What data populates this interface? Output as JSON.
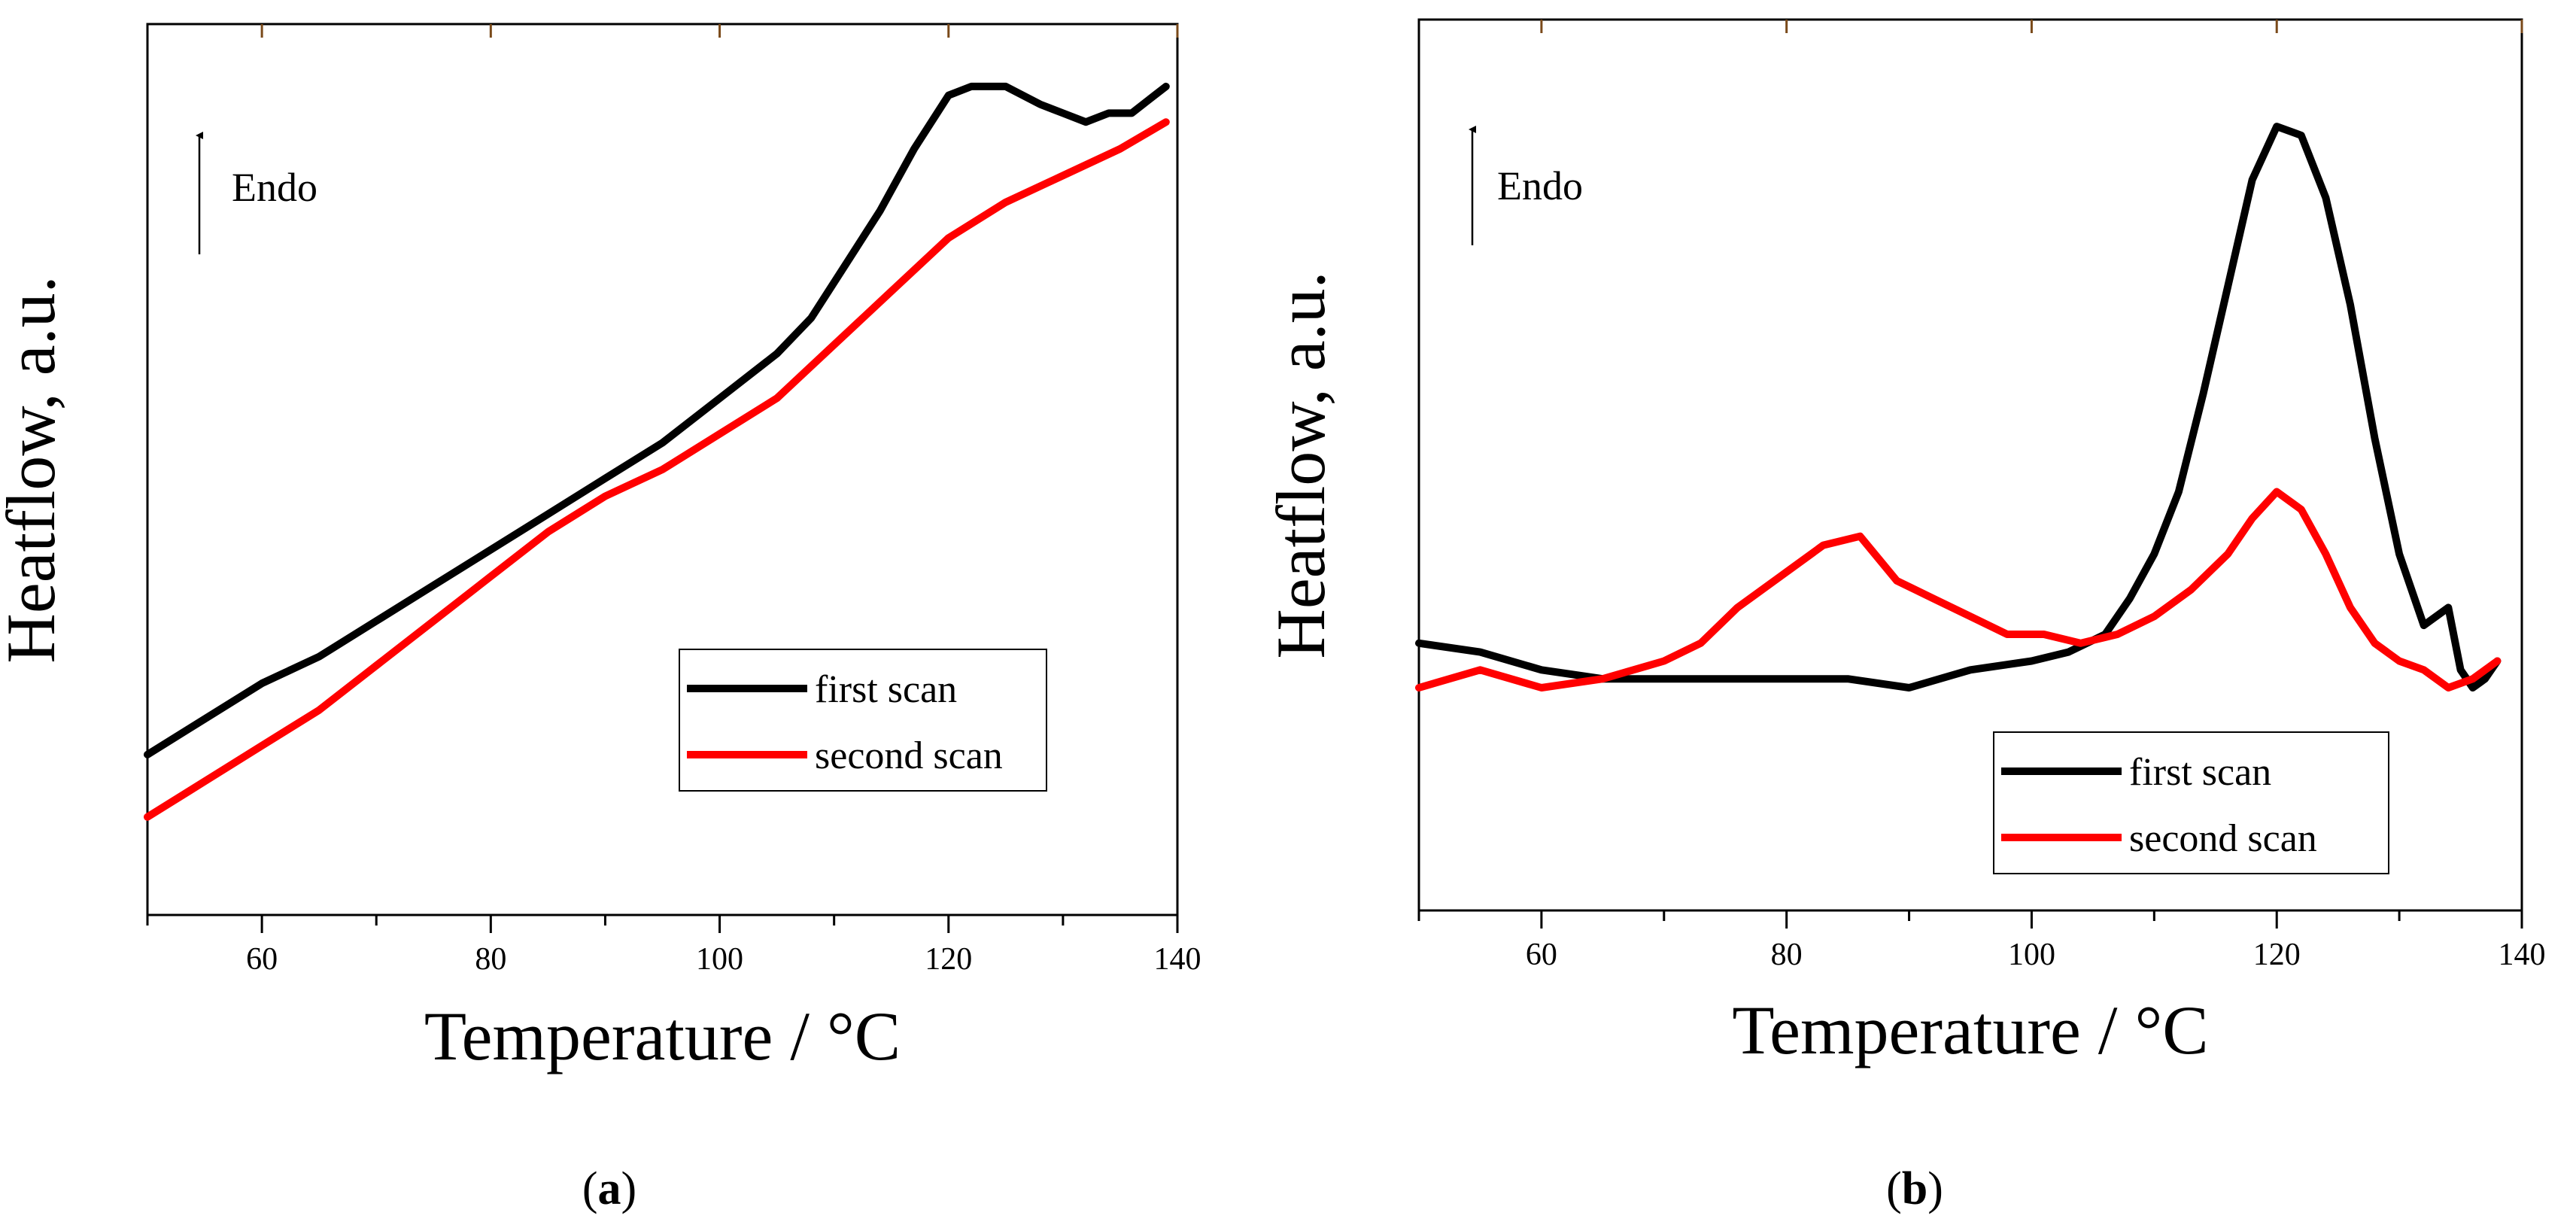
{
  "figure": {
    "panels": [
      {
        "label_open": "(",
        "label_letter": "a",
        "label_close": ")"
      },
      {
        "label_open": "(",
        "label_letter": "b",
        "label_close": ")"
      }
    ]
  },
  "chart_data": [
    {
      "type": "line",
      "panel": "a",
      "xlabel": "Temperature / °C",
      "ylabel": "Heatflow, a.u.",
      "xlim": [
        50,
        140
      ],
      "ylim": [
        0,
        1
      ],
      "xticks": [
        60,
        80,
        100,
        120,
        140
      ],
      "yticks_labeled": false,
      "arrow_annotation": "Endo",
      "legend_position": "bottom-right",
      "series": [
        {
          "name": "first scan",
          "color": "#000000",
          "x": [
            50,
            55,
            60,
            65,
            70,
            75,
            80,
            85,
            90,
            95,
            100,
            105,
            108,
            111,
            114,
            117,
            120,
            122,
            125,
            128,
            130,
            132,
            134,
            136,
            138,
            139
          ],
          "y": [
            0.18,
            0.22,
            0.26,
            0.29,
            0.33,
            0.37,
            0.41,
            0.45,
            0.49,
            0.53,
            0.58,
            0.63,
            0.67,
            0.73,
            0.79,
            0.86,
            0.92,
            0.93,
            0.93,
            0.91,
            0.9,
            0.89,
            0.9,
            0.9,
            0.92,
            0.93
          ]
        },
        {
          "name": "second scan",
          "color": "#ff0000",
          "x": [
            50,
            55,
            60,
            65,
            70,
            75,
            80,
            85,
            90,
            95,
            100,
            105,
            110,
            115,
            120,
            125,
            130,
            135,
            139
          ],
          "y": [
            0.11,
            0.15,
            0.19,
            0.23,
            0.28,
            0.33,
            0.38,
            0.43,
            0.47,
            0.5,
            0.54,
            0.58,
            0.64,
            0.7,
            0.76,
            0.8,
            0.83,
            0.86,
            0.89
          ]
        }
      ]
    },
    {
      "type": "line",
      "panel": "b",
      "xlabel": "Temperature / °C",
      "ylabel": "Heatflow, a.u.",
      "xlim": [
        50,
        140
      ],
      "ylim": [
        0,
        1
      ],
      "xticks": [
        60,
        80,
        100,
        120,
        140
      ],
      "yticks_labeled": false,
      "arrow_annotation": "Endo",
      "legend_position": "bottom-right",
      "series": [
        {
          "name": "first scan",
          "color": "#000000",
          "x": [
            50,
            55,
            60,
            65,
            70,
            75,
            80,
            85,
            90,
            95,
            100,
            103,
            106,
            108,
            110,
            112,
            114,
            116,
            118,
            120,
            122,
            124,
            126,
            128,
            130,
            132,
            134,
            135,
            136,
            137,
            138
          ],
          "y": [
            0.3,
            0.29,
            0.27,
            0.26,
            0.26,
            0.26,
            0.26,
            0.26,
            0.25,
            0.27,
            0.28,
            0.29,
            0.31,
            0.35,
            0.4,
            0.47,
            0.58,
            0.7,
            0.82,
            0.88,
            0.87,
            0.8,
            0.68,
            0.53,
            0.4,
            0.32,
            0.34,
            0.27,
            0.25,
            0.26,
            0.28
          ]
        },
        {
          "name": "second scan",
          "color": "#ff0000",
          "x": [
            50,
            55,
            60,
            65,
            70,
            73,
            76,
            80,
            83,
            86,
            89,
            92,
            95,
            98,
            101,
            104,
            107,
            110,
            113,
            116,
            118,
            120,
            122,
            124,
            126,
            128,
            130,
            132,
            134,
            136,
            138
          ],
          "y": [
            0.25,
            0.27,
            0.25,
            0.26,
            0.28,
            0.3,
            0.34,
            0.38,
            0.41,
            0.42,
            0.37,
            0.35,
            0.33,
            0.31,
            0.31,
            0.3,
            0.31,
            0.33,
            0.36,
            0.4,
            0.44,
            0.47,
            0.45,
            0.4,
            0.34,
            0.3,
            0.28,
            0.27,
            0.25,
            0.26,
            0.28
          ]
        }
      ]
    }
  ]
}
